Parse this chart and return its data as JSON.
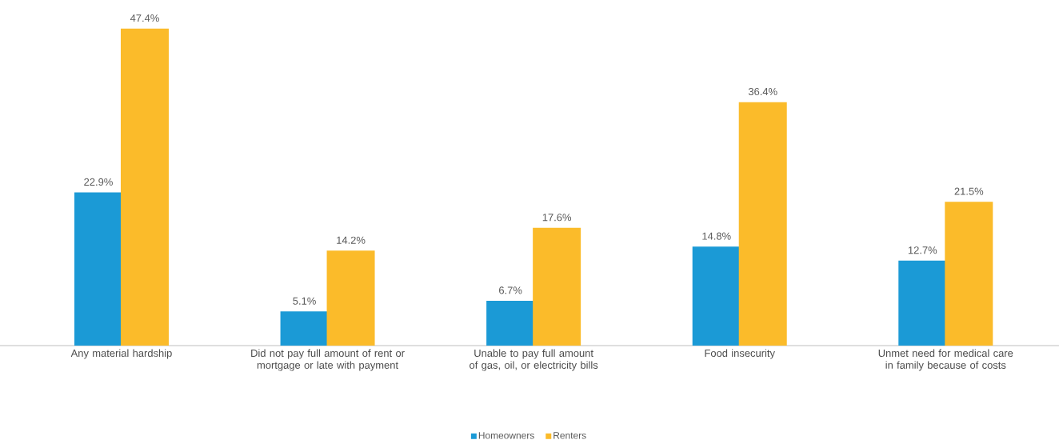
{
  "chart_data": {
    "type": "bar",
    "categories": [
      "Any material hardship",
      "Did not pay full amount of rent or mortgage or late with payment",
      "Unable to pay full amount of gas, oil, or electricity bills",
      "Food insecurity",
      "Unmet need for medical care in family because of costs"
    ],
    "series": [
      {
        "name": "Homeowners",
        "color": "#1b9ad6",
        "values": [
          22.9,
          5.1,
          6.7,
          14.8,
          12.7
        ],
        "value_labels": [
          "22.9%",
          "5.1%",
          "6.7%",
          "14.8%",
          "12.7%"
        ]
      },
      {
        "name": "Renters",
        "color": "#fbbb2a",
        "values": [
          47.4,
          14.2,
          17.6,
          36.4,
          21.5
        ],
        "value_labels": [
          "47.4%",
          "14.2%",
          "17.6%",
          "36.4%",
          "21.5%"
        ]
      }
    ],
    "legend": "bottom"
  }
}
